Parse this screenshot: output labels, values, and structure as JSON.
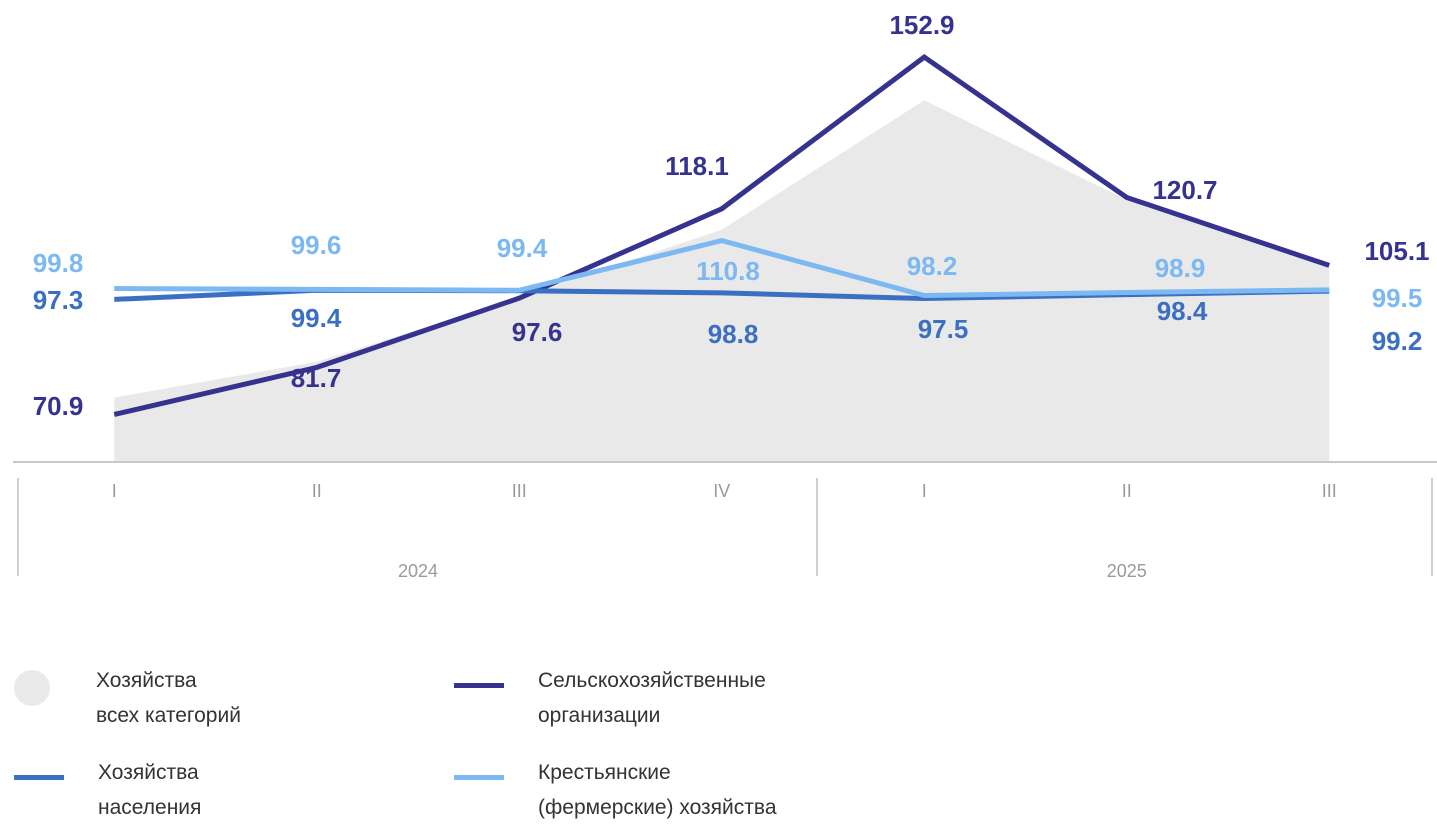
{
  "chart_data": {
    "type": "line",
    "categories": [
      "I",
      "II",
      "III",
      "IV",
      "I",
      "II",
      "III"
    ],
    "groups": [
      {
        "label": "2024",
        "count": 4
      },
      {
        "label": "2025",
        "count": 3
      }
    ],
    "ylim": [
      60,
      166
    ],
    "series": [
      {
        "name": "Хозяйства\nвсех категорий",
        "type": "area",
        "color": "#e9e9e9",
        "values": [
          74.8,
          83.0,
          97.7,
          113.3,
          143.0,
          120.1,
          104.5
        ]
      },
      {
        "name": "Сельскохозяйственные\nорганизации",
        "color": "#35338f",
        "values": [
          70.9,
          81.7,
          97.6,
          118.1,
          152.9,
          120.7,
          105.1
        ]
      },
      {
        "name": "Хозяйства\nнаселения",
        "color": "#3a6fc1",
        "values": [
          97.3,
          99.4,
          99.3,
          98.8,
          97.5,
          98.4,
          99.2
        ],
        "value_labels": [
          "97.3",
          "99.4",
          null,
          "98.8",
          "97.5",
          "98.4",
          "99.2"
        ]
      },
      {
        "name": "Крестьянские\n(фермерские) хозяйства",
        "color": "#7cb8f2",
        "values": [
          99.8,
          99.6,
          99.4,
          110.8,
          98.2,
          98.9,
          99.5
        ]
      }
    ]
  }
}
